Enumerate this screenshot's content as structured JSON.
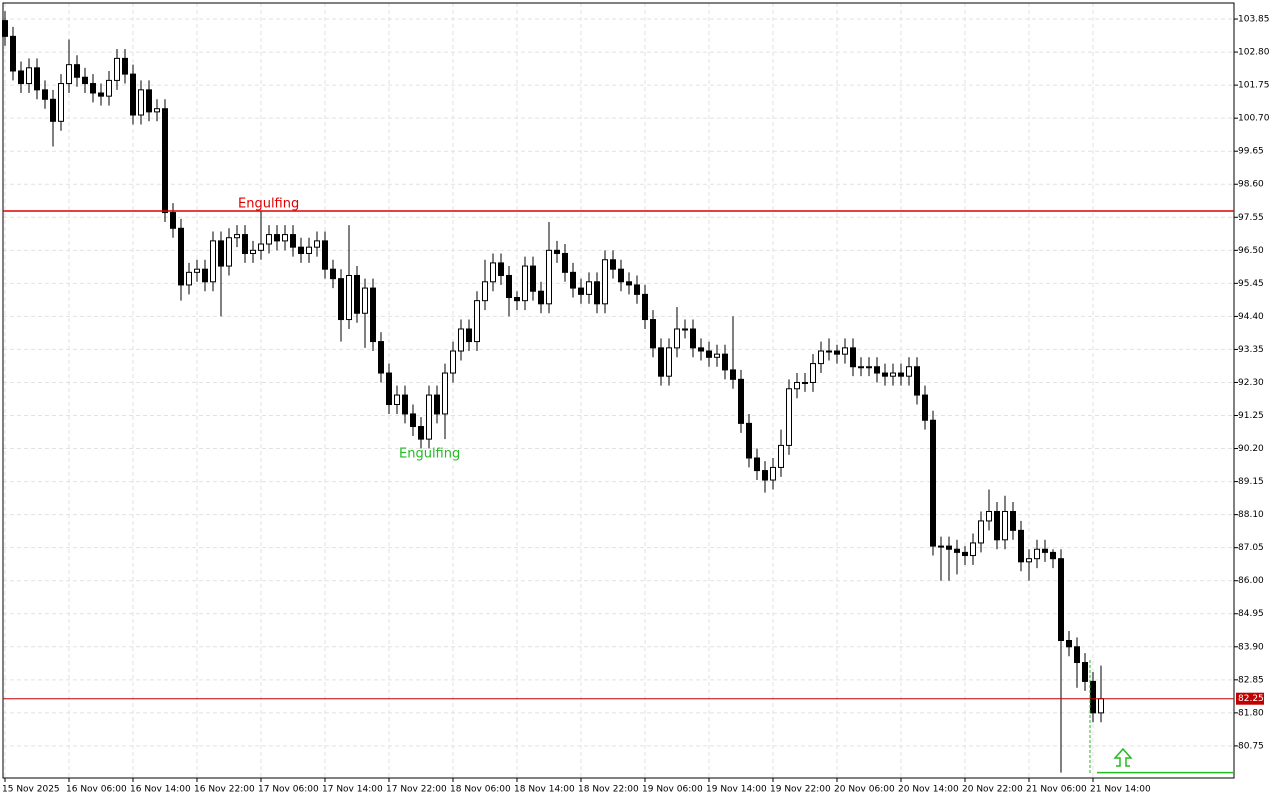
{
  "chart_data": {
    "type": "candlestick",
    "categories": [
      "15 Nov 2025",
      null,
      null,
      null,
      null,
      null,
      null,
      null,
      "16 Nov 06:00",
      null,
      null,
      null,
      null,
      null,
      null,
      null,
      "16 Nov 14:00",
      null,
      null,
      null,
      null,
      null,
      null,
      null,
      "16 Nov 22:00",
      null,
      null,
      null,
      null,
      null,
      null,
      null,
      "17 Nov 06:00",
      null,
      null,
      null,
      null,
      null,
      null,
      null,
      "17 Nov 14:00",
      null,
      null,
      null,
      null,
      null,
      null,
      null,
      "17 Nov 22:00",
      null,
      null,
      null,
      null,
      null,
      null,
      null,
      "18 Nov 06:00",
      null,
      null,
      null,
      null,
      null,
      null,
      null,
      "18 Nov 14:00",
      null,
      null,
      null,
      null,
      null,
      null,
      null,
      "18 Nov 22:00",
      null,
      null,
      null,
      null,
      null,
      null,
      null,
      "19 Nov 06:00",
      null,
      null,
      null,
      null,
      null,
      null,
      null,
      "19 Nov 14:00",
      null,
      null,
      null,
      null,
      null,
      null,
      null,
      "19 Nov 22:00",
      null,
      null,
      null,
      null,
      null,
      null,
      null,
      "20 Nov 06:00",
      null,
      null,
      null,
      null,
      null,
      null,
      null,
      "20 Nov 14:00",
      null,
      null,
      null,
      null,
      null,
      null,
      null,
      "20 Nov 22:00",
      null,
      null,
      null,
      null,
      null,
      null,
      null,
      "21 Nov 06:00",
      null,
      null,
      null,
      null,
      null,
      null,
      null,
      "21 Nov 14:00",
      null
    ],
    "open": [
      103.8,
      103.3,
      102.2,
      101.8,
      102.3,
      101.6,
      101.3,
      100.6,
      101.8,
      102.4,
      102.0,
      101.8,
      101.5,
      101.4,
      101.9,
      102.6,
      102.1,
      100.8,
      101.6,
      100.9,
      101.0,
      97.7,
      97.2,
      95.4,
      95.8,
      95.9,
      95.5,
      96.8,
      96.0,
      96.9,
      97.0,
      96.4,
      96.5,
      96.7,
      97.0,
      96.8,
      97.0,
      96.6,
      96.4,
      96.6,
      96.8,
      95.9,
      95.6,
      94.3,
      95.7,
      94.5,
      95.3,
      93.6,
      92.6,
      91.6,
      91.9,
      91.3,
      90.9,
      90.5,
      91.9,
      91.3,
      92.6,
      93.3,
      94.0,
      93.6,
      94.9,
      95.5,
      96.1,
      95.7,
      95.0,
      94.9,
      96.0,
      95.2,
      94.8,
      96.5,
      96.4,
      95.8,
      95.3,
      95.1,
      95.5,
      94.8,
      96.2,
      95.9,
      95.5,
      95.4,
      95.1,
      94.3,
      93.4,
      92.5,
      93.4,
      94.0,
      94.0,
      93.4,
      93.3,
      93.1,
      93.2,
      92.7,
      92.4,
      91.0,
      89.9,
      89.5,
      89.2,
      89.6,
      90.3,
      92.1,
      92.3,
      92.3,
      92.9,
      93.3,
      93.3,
      93.2,
      93.4,
      92.8,
      92.8,
      92.8,
      92.6,
      92.5,
      92.6,
      92.5,
      92.8,
      91.9,
      91.1,
      87.1,
      87.1,
      87.0,
      86.9,
      86.8,
      87.2,
      87.9,
      88.2,
      87.3,
      88.2,
      87.6,
      86.6,
      86.7,
      87.0,
      86.9,
      86.7,
      84.1,
      83.9,
      83.4,
      82.8,
      81.8
    ],
    "high": [
      104.1,
      103.6,
      102.5,
      102.6,
      102.6,
      101.9,
      101.6,
      102.1,
      103.2,
      102.7,
      102.3,
      102.1,
      101.8,
      102.2,
      102.9,
      102.9,
      102.4,
      101.9,
      101.9,
      101.3,
      101.3,
      98.0,
      97.5,
      96.1,
      96.2,
      96.2,
      97.1,
      97.1,
      97.2,
      97.3,
      97.3,
      96.8,
      97.75,
      97.3,
      97.3,
      97.3,
      97.3,
      96.9,
      96.9,
      97.1,
      97.1,
      96.2,
      95.9,
      97.3,
      96.0,
      95.6,
      95.6,
      93.9,
      92.9,
      92.2,
      92.2,
      91.6,
      91.2,
      92.2,
      92.2,
      92.9,
      93.6,
      94.3,
      94.3,
      95.2,
      96.2,
      96.4,
      96.4,
      96.0,
      95.2,
      96.3,
      96.3,
      95.5,
      97.4,
      96.8,
      96.7,
      96.1,
      95.6,
      95.8,
      95.8,
      96.5,
      96.5,
      96.2,
      95.8,
      95.7,
      95.4,
      94.6,
      93.7,
      93.7,
      94.7,
      94.3,
      94.3,
      93.7,
      93.6,
      93.5,
      93.5,
      94.4,
      92.7,
      91.3,
      90.2,
      89.8,
      89.9,
      90.8,
      92.4,
      92.6,
      92.6,
      93.2,
      93.6,
      93.7,
      93.5,
      93.7,
      93.7,
      93.1,
      93.1,
      93.1,
      92.9,
      92.9,
      92.9,
      93.1,
      93.1,
      92.2,
      91.4,
      87.4,
      87.4,
      87.3,
      87.1,
      87.5,
      88.2,
      88.9,
      88.5,
      88.7,
      88.5,
      87.9,
      87.0,
      87.3,
      87.3,
      87.0,
      87.0,
      84.4,
      84.2,
      83.7,
      83.1,
      83.3
    ],
    "low": [
      103.0,
      101.9,
      101.5,
      101.5,
      101.3,
      101.0,
      99.8,
      100.3,
      101.5,
      101.7,
      101.5,
      101.2,
      101.1,
      101.1,
      101.6,
      101.8,
      100.5,
      100.5,
      100.6,
      100.6,
      97.4,
      96.9,
      94.9,
      95.1,
      95.5,
      95.2,
      95.2,
      94.4,
      95.7,
      96.6,
      96.1,
      96.1,
      96.2,
      96.4,
      96.5,
      96.5,
      96.3,
      96.1,
      96.1,
      96.3,
      95.6,
      95.3,
      93.6,
      94.0,
      94.2,
      93.4,
      93.3,
      92.3,
      91.3,
      91.3,
      91.0,
      90.6,
      90.2,
      90.2,
      91.0,
      90.5,
      92.3,
      93.0,
      93.3,
      93.3,
      94.6,
      95.2,
      95.4,
      94.4,
      94.6,
      94.6,
      94.9,
      94.5,
      94.5,
      96.1,
      95.5,
      95.0,
      94.8,
      94.8,
      94.5,
      94.5,
      95.6,
      95.2,
      95.1,
      94.8,
      94.0,
      93.1,
      92.2,
      92.2,
      93.1,
      93.7,
      93.1,
      93.0,
      92.8,
      92.8,
      92.4,
      92.1,
      90.7,
      89.6,
      89.2,
      88.8,
      88.9,
      89.3,
      90.0,
      91.8,
      92.0,
      92.0,
      92.6,
      93.0,
      92.9,
      92.9,
      92.5,
      92.5,
      92.5,
      92.3,
      92.2,
      92.2,
      92.2,
      92.2,
      91.6,
      90.8,
      86.8,
      86.0,
      86.0,
      86.2,
      86.5,
      86.5,
      86.9,
      87.6,
      87.0,
      87.0,
      87.3,
      86.3,
      86.0,
      86.4,
      86.6,
      86.4,
      79.9,
      83.6,
      82.6,
      82.5,
      81.5,
      81.5
    ],
    "close": [
      103.3,
      102.2,
      101.8,
      102.3,
      101.6,
      101.3,
      100.6,
      101.8,
      102.4,
      102.0,
      101.8,
      101.5,
      101.4,
      101.9,
      102.6,
      102.1,
      100.8,
      101.6,
      100.9,
      101.0,
      97.7,
      97.2,
      95.4,
      95.8,
      95.9,
      95.5,
      96.8,
      96.0,
      96.9,
      97.0,
      96.4,
      96.5,
      96.7,
      97.0,
      96.8,
      97.0,
      96.6,
      96.4,
      96.6,
      96.8,
      95.9,
      95.6,
      94.3,
      95.7,
      94.5,
      95.3,
      93.6,
      92.6,
      91.6,
      91.9,
      91.3,
      90.9,
      90.5,
      91.9,
      91.3,
      92.6,
      93.3,
      94.0,
      93.6,
      94.9,
      95.5,
      96.1,
      95.7,
      95.0,
      94.9,
      96.0,
      95.2,
      94.8,
      96.5,
      96.4,
      95.8,
      95.3,
      95.1,
      95.5,
      94.8,
      96.2,
      95.9,
      95.5,
      95.4,
      95.1,
      94.3,
      93.4,
      92.5,
      93.4,
      94.0,
      94.0,
      93.4,
      93.3,
      93.1,
      93.2,
      92.7,
      92.4,
      91.0,
      89.9,
      89.5,
      89.2,
      89.6,
      90.3,
      92.1,
      92.3,
      92.3,
      92.9,
      93.3,
      93.3,
      93.2,
      93.4,
      92.8,
      92.8,
      92.8,
      92.6,
      92.5,
      92.6,
      92.5,
      92.8,
      91.9,
      91.1,
      87.1,
      87.1,
      87.0,
      86.9,
      86.8,
      87.2,
      87.9,
      88.2,
      87.3,
      88.2,
      87.6,
      86.6,
      86.7,
      87.0,
      86.9,
      86.7,
      84.1,
      83.9,
      83.4,
      82.8,
      81.8,
      82.25
    ],
    "ylim": [
      79.73,
      104.36
    ],
    "yticks": [
      103.85,
      {
        "value": 102.8,
        "label": "102.80"
      },
      101.75,
      {
        "value": 100.7,
        "label": "100.70"
      },
      99.65,
      {
        "value": 98.6,
        "label": "98.60"
      },
      97.55,
      {
        "value": 96.5,
        "label": "96.50"
      },
      95.45,
      {
        "value": 94.4,
        "label": "94.40"
      },
      93.35,
      {
        "value": 92.3,
        "label": "92.30"
      },
      91.25,
      {
        "value": 90.2,
        "label": "90.20"
      },
      89.15,
      {
        "value": 88.1,
        "label": "88.10"
      },
      87.05,
      {
        "value": 86,
        "label": "86.00"
      },
      84.95,
      {
        "value": 83.9,
        "label": "83.90"
      },
      82.85,
      {
        "value": 81.8,
        "label": "81.80"
      },
      80.75
    ],
    "grid": true,
    "levels": [
      {
        "value": 97.75,
        "color": "#e00000"
      },
      {
        "value": 82.25,
        "color": "#c00000"
      },
      {
        "value": 79.9,
        "color": "#22bb22"
      }
    ],
    "annotations": [
      {
        "text": "Engulfing",
        "color": "#e00000"
      },
      {
        "text": "Engulfing",
        "color": "#22bb22"
      }
    ]
  }
}
